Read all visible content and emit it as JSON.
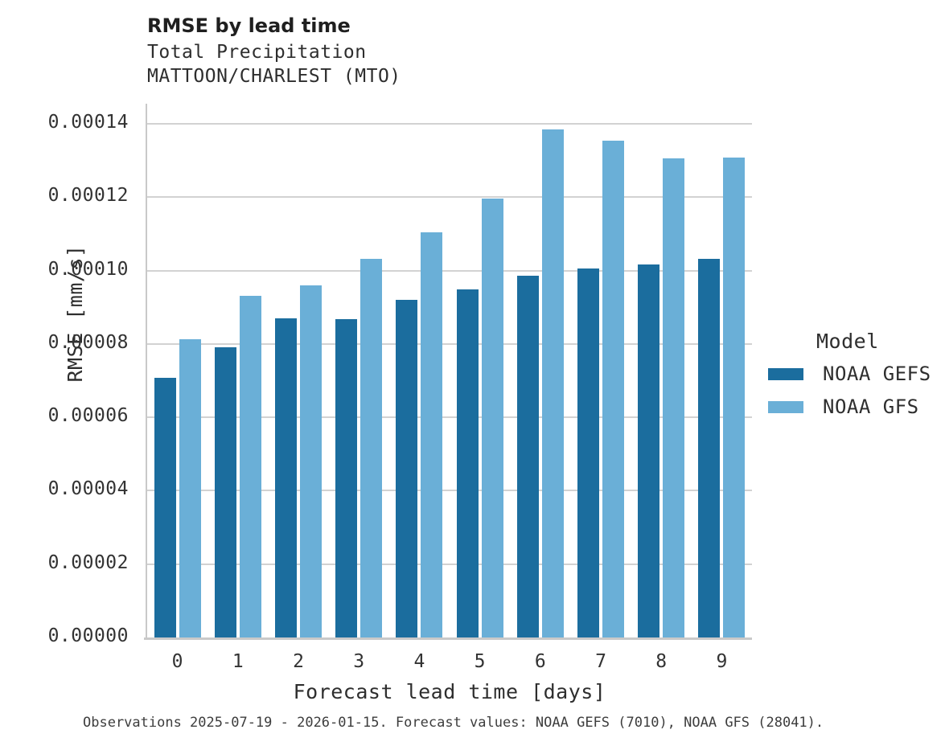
{
  "header": {
    "title": "RMSE by lead time",
    "subtitle1": "Total Precipitation",
    "subtitle2": "MATTOON/CHARLEST (MTO)"
  },
  "legend": {
    "title": "Model",
    "entries": [
      {
        "label": "NOAA GEFS",
        "color": "#1b6d9e"
      },
      {
        "label": "NOAA GFS",
        "color": "#6aafd7"
      }
    ]
  },
  "footer": {
    "note": "Observations 2025-07-19 - 2026-01-15. Forecast values: NOAA GEFS (7010), NOAA GFS (28041)."
  },
  "colors": {
    "gefs": "#1b6d9e",
    "gfs": "#6aafd7",
    "gridline": "#d2d2d2",
    "spine": "#c9c9c9"
  },
  "chart_data": {
    "type": "bar",
    "title": "RMSE by lead time",
    "subtitle": [
      "Total Precipitation",
      "MATTOON/CHARLEST (MTO)"
    ],
    "xlabel": "Forecast lead time [days]",
    "ylabel": "RMSE [mm/s]",
    "categories": [
      "0",
      "1",
      "2",
      "3",
      "4",
      "5",
      "6",
      "7",
      "8",
      "9"
    ],
    "series": [
      {
        "name": "NOAA GEFS",
        "color": "#1b6d9e",
        "values": [
          7.07e-05,
          7.9e-05,
          8.69e-05,
          8.67e-05,
          9.2e-05,
          9.49e-05,
          9.87e-05,
          0.0001006,
          0.0001017,
          0.0001032
        ]
      },
      {
        "name": "NOAA GFS",
        "color": "#6aafd7",
        "values": [
          8.13e-05,
          9.32e-05,
          9.6e-05,
          0.0001033,
          0.0001105,
          0.0001197,
          0.0001384,
          0.0001354,
          0.0001305,
          0.0001308
        ]
      }
    ],
    "ylim": [
      0,
      0.0001455
    ],
    "ytick_values": [
      0.0,
      2e-05,
      4e-05,
      6e-05,
      8e-05,
      0.0001,
      0.00012,
      0.00014
    ],
    "ytick_labels": [
      "0.00000",
      "0.00002",
      "0.00004",
      "0.00006",
      "0.00008",
      "0.00010",
      "0.00012",
      "0.00014"
    ],
    "grid": true,
    "legend_title": "Model",
    "legend_position": "right"
  }
}
